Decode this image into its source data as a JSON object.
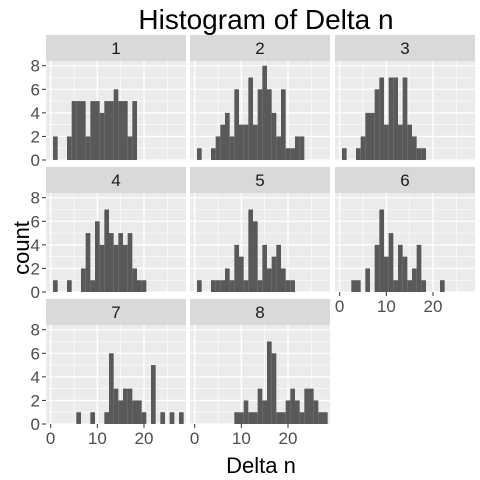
{
  "chart_data": {
    "type": "bar",
    "title": "Histogram of Delta n",
    "xlabel": "Delta n",
    "ylabel": "count",
    "xlim": [
      -1,
      29
    ],
    "ylim": [
      0,
      8.4
    ],
    "x_ticks": [
      0,
      10,
      20
    ],
    "y_ticks": [
      0,
      2,
      4,
      6,
      8
    ],
    "bin_width": 1,
    "grid": true,
    "panels": [
      {
        "name": "1",
        "bars": [
          [
            1,
            2
          ],
          [
            4,
            2
          ],
          [
            5,
            5
          ],
          [
            6,
            5
          ],
          [
            7,
            5
          ],
          [
            8,
            2
          ],
          [
            9,
            5
          ],
          [
            10,
            5
          ],
          [
            11,
            4
          ],
          [
            12,
            5
          ],
          [
            13,
            5
          ],
          [
            14,
            6
          ],
          [
            15,
            5
          ],
          [
            16,
            5
          ],
          [
            17,
            2
          ],
          [
            18,
            5
          ]
        ]
      },
      {
        "name": "2",
        "bars": [
          [
            1,
            1
          ],
          [
            4,
            1
          ],
          [
            5,
            2
          ],
          [
            6,
            3
          ],
          [
            7,
            4
          ],
          [
            8,
            2
          ],
          [
            9,
            6
          ],
          [
            10,
            3
          ],
          [
            11,
            3
          ],
          [
            12,
            7
          ],
          [
            13,
            3
          ],
          [
            14,
            6
          ],
          [
            15,
            8
          ],
          [
            16,
            6
          ],
          [
            17,
            4
          ],
          [
            18,
            2
          ],
          [
            19,
            6
          ],
          [
            20,
            1
          ],
          [
            21,
            1
          ],
          [
            22,
            2
          ],
          [
            23,
            2
          ]
        ]
      },
      {
        "name": "3",
        "bars": [
          [
            1,
            1
          ],
          [
            4,
            1
          ],
          [
            5,
            2
          ],
          [
            6,
            4
          ],
          [
            7,
            4
          ],
          [
            8,
            6
          ],
          [
            9,
            7
          ],
          [
            10,
            3
          ],
          [
            11,
            7
          ],
          [
            12,
            7
          ],
          [
            13,
            3
          ],
          [
            14,
            7
          ],
          [
            15,
            3
          ],
          [
            16,
            2
          ],
          [
            17,
            1
          ],
          [
            18,
            1
          ]
        ]
      },
      {
        "name": "4",
        "bars": [
          [
            1,
            1
          ],
          [
            4,
            1
          ],
          [
            7,
            2
          ],
          [
            8,
            5
          ],
          [
            9,
            1
          ],
          [
            10,
            6
          ],
          [
            11,
            4
          ],
          [
            12,
            7
          ],
          [
            13,
            5
          ],
          [
            14,
            4
          ],
          [
            15,
            5
          ],
          [
            16,
            4
          ],
          [
            17,
            5
          ],
          [
            18,
            2
          ],
          [
            19,
            1
          ],
          [
            20,
            1
          ]
        ]
      },
      {
        "name": "5",
        "bars": [
          [
            1,
            1
          ],
          [
            4,
            1
          ],
          [
            5,
            1
          ],
          [
            6,
            1
          ],
          [
            7,
            2
          ],
          [
            8,
            1
          ],
          [
            9,
            4
          ],
          [
            10,
            3
          ],
          [
            11,
            1
          ],
          [
            12,
            7
          ],
          [
            13,
            6
          ],
          [
            14,
            1
          ],
          [
            15,
            4
          ],
          [
            16,
            2
          ],
          [
            17,
            3
          ],
          [
            18,
            4
          ],
          [
            19,
            2
          ],
          [
            20,
            1
          ],
          [
            21,
            1
          ]
        ]
      },
      {
        "name": "6",
        "bars": [
          [
            3,
            1
          ],
          [
            4,
            1
          ],
          [
            6,
            2
          ],
          [
            8,
            4
          ],
          [
            9,
            7
          ],
          [
            10,
            3
          ],
          [
            11,
            5
          ],
          [
            12,
            1
          ],
          [
            13,
            4
          ],
          [
            14,
            3
          ],
          [
            15,
            1
          ],
          [
            16,
            2
          ],
          [
            17,
            4
          ],
          [
            18,
            1
          ],
          [
            22,
            1
          ]
        ]
      },
      {
        "name": "7",
        "bars": [
          [
            6,
            1
          ],
          [
            9,
            1
          ],
          [
            12,
            1
          ],
          [
            13,
            6
          ],
          [
            14,
            3
          ],
          [
            15,
            2
          ],
          [
            16,
            3
          ],
          [
            17,
            3
          ],
          [
            18,
            2
          ],
          [
            19,
            2
          ],
          [
            20,
            1
          ],
          [
            22,
            5
          ],
          [
            24,
            1
          ],
          [
            26,
            1
          ],
          [
            28,
            1
          ]
        ]
      },
      {
        "name": "8",
        "bars": [
          [
            9,
            1
          ],
          [
            10,
            1
          ],
          [
            11,
            2
          ],
          [
            12,
            1
          ],
          [
            13,
            1
          ],
          [
            14,
            3
          ],
          [
            15,
            2
          ],
          [
            16,
            7
          ],
          [
            17,
            6
          ],
          [
            18,
            1
          ],
          [
            19,
            1
          ],
          [
            20,
            2
          ],
          [
            21,
            3
          ],
          [
            22,
            2
          ],
          [
            23,
            1
          ],
          [
            24,
            3
          ],
          [
            25,
            3
          ],
          [
            26,
            2
          ],
          [
            27,
            1
          ],
          [
            28,
            1
          ]
        ]
      }
    ],
    "colors": {
      "bar": "#595959",
      "panel_bg": "#ebebeb",
      "strip_bg": "#d9d9d9",
      "grid_major": "#ffffff",
      "tick_text": "#4d4d4d"
    }
  }
}
